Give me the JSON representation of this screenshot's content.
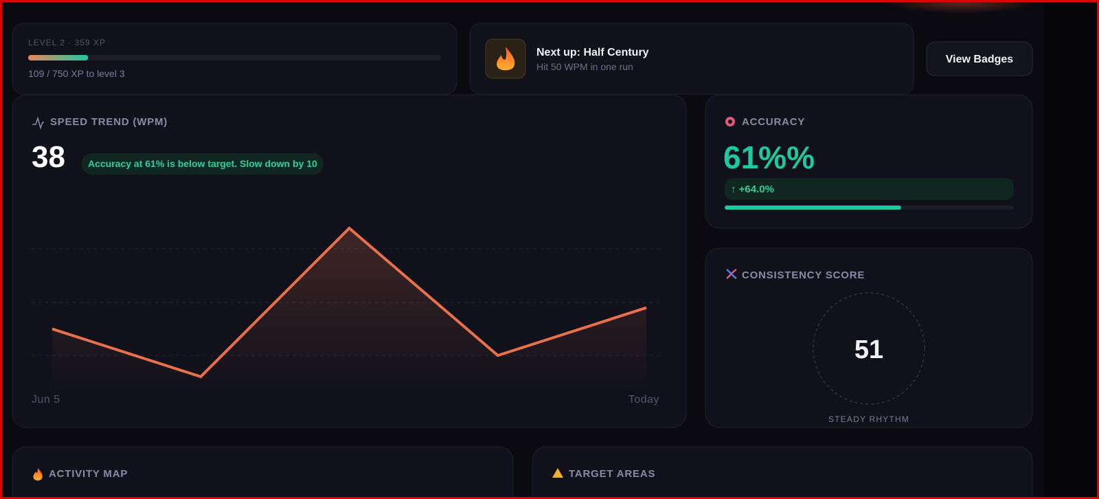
{
  "xp": {
    "level_label": "LEVEL 2 · 359 XP",
    "progress_text": "109 / 750 XP to level 3",
    "current": 109,
    "goal": 750
  },
  "next_badge": {
    "title": "Next up: Half Century",
    "subtitle": "Hit 50 WPM in one run"
  },
  "view_badges_button": "View Badges",
  "chart_data": {
    "type": "line",
    "title": "SPEED TREND (WPM)",
    "current_wpm": 38,
    "tip": "Accuracy at 61% is below target. Slow down by 10",
    "categories": [
      "Jun 5",
      null,
      null,
      null,
      "Today"
    ],
    "series": [
      {
        "color": "#e8704a",
        "values": [
          34,
          25,
          53,
          29,
          38
        ]
      }
    ]
  },
  "accuracy": {
    "title": "ACCURACY",
    "value_text": "61%%",
    "change": "↑ +64.0%",
    "progress": 61
  },
  "consistency": {
    "title": "CONSISTENCY SCORE",
    "score": 51,
    "caption": "STEADY RHYTHM"
  },
  "activity": {
    "title": "ACTIVITY MAP"
  },
  "targets": {
    "title": "TARGET AREAS"
  }
}
